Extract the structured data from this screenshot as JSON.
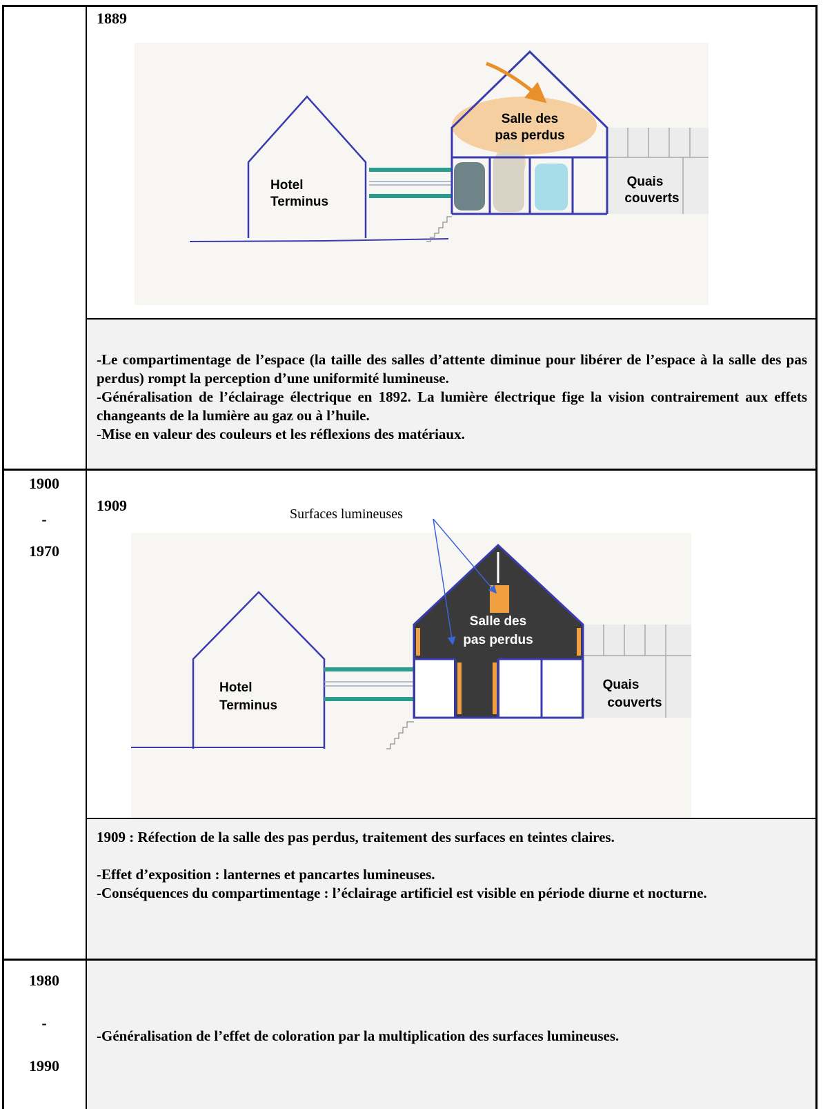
{
  "table": {
    "rows": [
      {
        "diagram": {
          "year": "1889",
          "hotel": [
            "Hotel",
            "Terminus"
          ],
          "salle": [
            "Salle des",
            "pas perdus"
          ],
          "quais": [
            "Quais",
            "couverts"
          ]
        },
        "notes": [
          "-Le compartimentage de l’espace (la taille des salles d’attente diminue pour libérer de l’espace à la salle des pas perdus) rompt la perception d’une uniformité lumineuse.",
          "-Généralisation de l’éclairage électrique en 1892. La lumière électrique fige la vision contrairement aux effets changeants de la lumière au gaz ou à l’huile.",
          "-Mise en valeur des couleurs et les réflexions des matériaux."
        ]
      },
      {
        "period": [
          "1900",
          "-",
          "1970"
        ],
        "diagram": {
          "year": "1909",
          "annotation": "Surfaces lumineuses",
          "hotel": [
            "Hotel",
            "Terminus"
          ],
          "salle": [
            "Salle des",
            "pas perdus"
          ],
          "quais": [
            "Quais",
            "couverts"
          ]
        },
        "notes": [
          "1909 : Réfection de la salle des pas perdus, traitement des surfaces en teintes claires.",
          "-Effet d’exposition : lanternes et pancartes lumineuses.",
          "-Conséquences du compartimentage : l’éclairage artificiel est visible en période diurne et nocturne."
        ]
      },
      {
        "period": [
          "1980",
          "-",
          "1990"
        ],
        "notes": [
          "-Généralisation de l’effet de coloration par la multiplication des surfaces lumineuses."
        ]
      }
    ]
  }
}
